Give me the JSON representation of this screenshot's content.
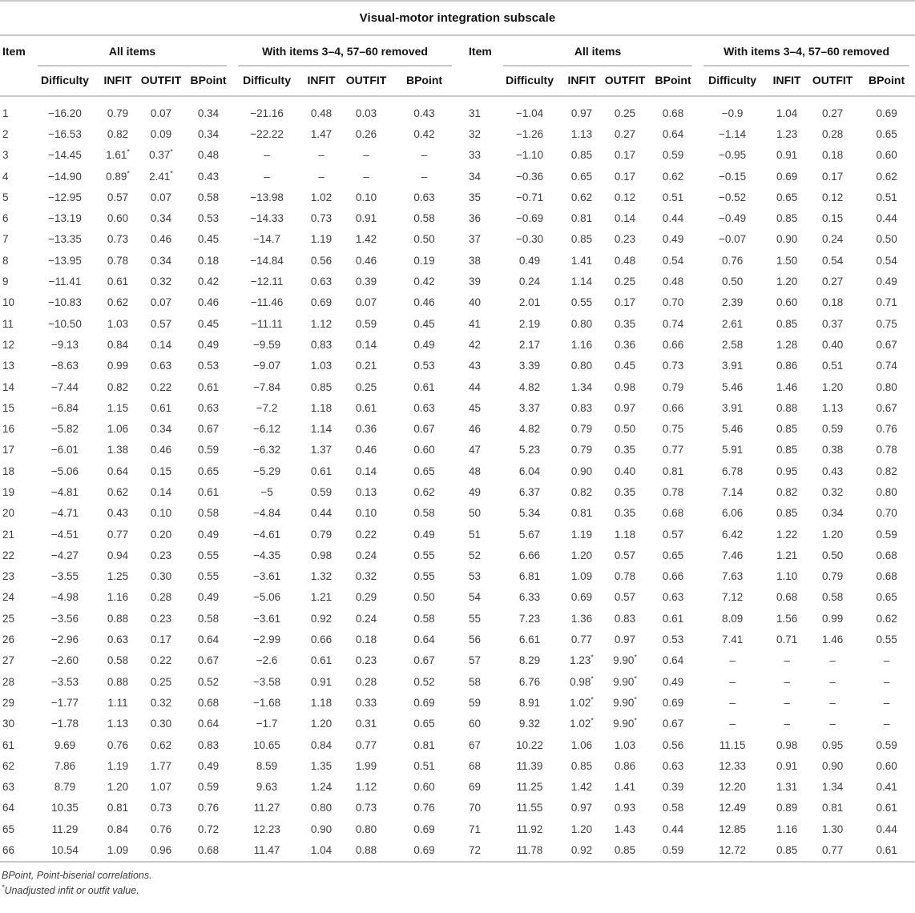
{
  "title": "Visual-motor integration subscale",
  "table": {
    "item_header": "Item",
    "group_headers": [
      "All items",
      "With items 3–4, 57–60 removed"
    ],
    "sub_headers": [
      "Difficulty",
      "INFIT",
      "OUTFIT",
      "BPoint"
    ],
    "left_rows": [
      [
        "1",
        "−16.20",
        "0.79",
        "0.07",
        "0.34",
        "−21.16",
        "0.48",
        "0.03",
        "0.43"
      ],
      [
        "2",
        "−16.53",
        "0.82",
        "0.09",
        "0.34",
        "−22.22",
        "1.47",
        "0.26",
        "0.42"
      ],
      [
        "3",
        "−14.45",
        "1.61*",
        "0.37*",
        "0.48",
        "–",
        "–",
        "–",
        "–"
      ],
      [
        "4",
        "−14.90",
        "0.89*",
        "2.41*",
        "0.43",
        "–",
        "–",
        "–",
        "–"
      ],
      [
        "5",
        "−12.95",
        "0.57",
        "0.07",
        "0.58",
        "−13.98",
        "1.02",
        "0.10",
        "0.63"
      ],
      [
        "6",
        "−13.19",
        "0.60",
        "0.34",
        "0.53",
        "−14.33",
        "0.73",
        "0.91",
        "0.58"
      ],
      [
        "7",
        "−13.35",
        "0.73",
        "0.46",
        "0.45",
        "−14.7",
        "1.19",
        "1.42",
        "0.50"
      ],
      [
        "8",
        "−13.95",
        "0.78",
        "0.34",
        "0.18",
        "−14.84",
        "0.56",
        "0.46",
        "0.19"
      ],
      [
        "9",
        "−11.41",
        "0.61",
        "0.32",
        "0.42",
        "−12.11",
        "0.63",
        "0.39",
        "0.42"
      ],
      [
        "10",
        "−10.83",
        "0.62",
        "0.07",
        "0.46",
        "−11.46",
        "0.69",
        "0.07",
        "0.46"
      ],
      [
        "11",
        "−10.50",
        "1.03",
        "0.57",
        "0.45",
        "−11.11",
        "1.12",
        "0.59",
        "0.45"
      ],
      [
        "12",
        "−9.13",
        "0.84",
        "0.14",
        "0.49",
        "−9.59",
        "0.83",
        "0.14",
        "0.49"
      ],
      [
        "13",
        "−8.63",
        "0.99",
        "0.63",
        "0.53",
        "−9.07",
        "1.03",
        "0.21",
        "0.53"
      ],
      [
        "14",
        "−7.44",
        "0.82",
        "0.22",
        "0.61",
        "−7.84",
        "0.85",
        "0.25",
        "0.61"
      ],
      [
        "15",
        "−6.84",
        "1.15",
        "0.61",
        "0.63",
        "−7.2",
        "1.18",
        "0.61",
        "0.63"
      ],
      [
        "16",
        "−5.82",
        "1.06",
        "0.34",
        "0.67",
        "−6.12",
        "1.14",
        "0.36",
        "0.67"
      ],
      [
        "17",
        "−6.01",
        "1.38",
        "0.46",
        "0.59",
        "−6.32",
        "1.37",
        "0.46",
        "0.60"
      ],
      [
        "18",
        "−5.06",
        "0.64",
        "0.15",
        "0.65",
        "−5.29",
        "0.61",
        "0.14",
        "0.65"
      ],
      [
        "19",
        "−4.81",
        "0.62",
        "0.14",
        "0.61",
        "−5",
        "0.59",
        "0.13",
        "0.62"
      ],
      [
        "20",
        "−4.71",
        "0.43",
        "0.10",
        "0.58",
        "−4.84",
        "0.44",
        "0.10",
        "0.58"
      ],
      [
        "21",
        "−4.51",
        "0.77",
        "0.20",
        "0.49",
        "−4.61",
        "0.79",
        "0.22",
        "0.49"
      ],
      [
        "22",
        "−4.27",
        "0.94",
        "0.23",
        "0.55",
        "−4.35",
        "0.98",
        "0.24",
        "0.55"
      ],
      [
        "23",
        "−3.55",
        "1.25",
        "0.30",
        "0.55",
        "−3.61",
        "1.32",
        "0.32",
        "0.55"
      ],
      [
        "24",
        "−4.98",
        "1.16",
        "0.28",
        "0.49",
        "−5.06",
        "1.21",
        "0.29",
        "0.50"
      ],
      [
        "25",
        "−3.56",
        "0.88",
        "0.23",
        "0.58",
        "−3.61",
        "0.92",
        "0.24",
        "0.58"
      ],
      [
        "26",
        "−2.96",
        "0.63",
        "0.17",
        "0.64",
        "−2.99",
        "0.66",
        "0.18",
        "0.64"
      ],
      [
        "27",
        "−2.60",
        "0.58",
        "0.22",
        "0.67",
        "−2.6",
        "0.61",
        "0.23",
        "0.67"
      ],
      [
        "28",
        "−3.53",
        "0.88",
        "0.25",
        "0.52",
        "−3.58",
        "0.91",
        "0.28",
        "0.52"
      ],
      [
        "29",
        "−1.77",
        "1.11",
        "0.32",
        "0.68",
        "−1.68",
        "1.18",
        "0.33",
        "0.69"
      ],
      [
        "30",
        "−1.78",
        "1.13",
        "0.30",
        "0.64",
        "−1.7",
        "1.20",
        "0.31",
        "0.65"
      ],
      [
        "61",
        "9.69",
        "0.76",
        "0.62",
        "0.83",
        "10.65",
        "0.84",
        "0.77",
        "0.81"
      ],
      [
        "62",
        "7.86",
        "1.19",
        "1.77",
        "0.49",
        "8.59",
        "1.35",
        "1.99",
        "0.51"
      ],
      [
        "63",
        "8.79",
        "1.20",
        "1.07",
        "0.59",
        "9.63",
        "1.24",
        "1.12",
        "0.60"
      ],
      [
        "64",
        "10.35",
        "0.81",
        "0.73",
        "0.76",
        "11.27",
        "0.80",
        "0.73",
        "0.76"
      ],
      [
        "65",
        "11.29",
        "0.84",
        "0.76",
        "0.72",
        "12.23",
        "0.90",
        "0.80",
        "0.69"
      ],
      [
        "66",
        "10.54",
        "1.09",
        "0.96",
        "0.68",
        "11.47",
        "1.04",
        "0.88",
        "0.69"
      ]
    ],
    "right_rows": [
      [
        "31",
        "−1.04",
        "0.97",
        "0.25",
        "0.68",
        "−0.9",
        "1.04",
        "0.27",
        "0.69"
      ],
      [
        "32",
        "−1.26",
        "1.13",
        "0.27",
        "0.64",
        "−1.14",
        "1.23",
        "0.28",
        "0.65"
      ],
      [
        "33",
        "−1.10",
        "0.85",
        "0.17",
        "0.59",
        "−0.95",
        "0.91",
        "0.18",
        "0.60"
      ],
      [
        "34",
        "−0.36",
        "0.65",
        "0.17",
        "0.62",
        "−0.15",
        "0.69",
        "0.17",
        "0.62"
      ],
      [
        "35",
        "−0.71",
        "0.62",
        "0.12",
        "0.51",
        "−0.52",
        "0.65",
        "0.12",
        "0.51"
      ],
      [
        "36",
        "−0.69",
        "0.81",
        "0.14",
        "0.44",
        "−0.49",
        "0.85",
        "0.15",
        "0.44"
      ],
      [
        "37",
        "−0.30",
        "0.85",
        "0.23",
        "0.49",
        "−0.07",
        "0.90",
        "0.24",
        "0.50"
      ],
      [
        "38",
        "0.49",
        "1.41",
        "0.48",
        "0.54",
        "0.76",
        "1.50",
        "0.54",
        "0.54"
      ],
      [
        "39",
        "0.24",
        "1.14",
        "0.25",
        "0.48",
        "0.50",
        "1.20",
        "0.27",
        "0.49"
      ],
      [
        "40",
        "2.01",
        "0.55",
        "0.17",
        "0.70",
        "2.39",
        "0.60",
        "0.18",
        "0.71"
      ],
      [
        "41",
        "2.19",
        "0.80",
        "0.35",
        "0.74",
        "2.61",
        "0.85",
        "0.37",
        "0.75"
      ],
      [
        "42",
        "2.17",
        "1.16",
        "0.36",
        "0.66",
        "2.58",
        "1.28",
        "0.40",
        "0.67"
      ],
      [
        "43",
        "3.39",
        "0.80",
        "0.45",
        "0.73",
        "3.91",
        "0.86",
        "0.51",
        "0.74"
      ],
      [
        "44",
        "4.82",
        "1.34",
        "0.98",
        "0.79",
        "5.46",
        "1.46",
        "1.20",
        "0.80"
      ],
      [
        "45",
        "3.37",
        "0.83",
        "0.97",
        "0.66",
        "3.91",
        "0.88",
        "1.13",
        "0.67"
      ],
      [
        "46",
        "4.82",
        "0.79",
        "0.50",
        "0.75",
        "5.46",
        "0.85",
        "0.59",
        "0.76"
      ],
      [
        "47",
        "5.23",
        "0.79",
        "0.35",
        "0.77",
        "5.91",
        "0.85",
        "0.38",
        "0.78"
      ],
      [
        "48",
        "6.04",
        "0.90",
        "0.40",
        "0.81",
        "6.78",
        "0.95",
        "0.43",
        "0.82"
      ],
      [
        "49",
        "6.37",
        "0.82",
        "0.35",
        "0.78",
        "7.14",
        "0.82",
        "0.32",
        "0.80"
      ],
      [
        "50",
        "5.34",
        "0.81",
        "0.35",
        "0.68",
        "6.06",
        "0.85",
        "0.34",
        "0.70"
      ],
      [
        "51",
        "5.67",
        "1.19",
        "1.18",
        "0.57",
        "6.42",
        "1.22",
        "1.20",
        "0.59"
      ],
      [
        "52",
        "6.66",
        "1.20",
        "0.57",
        "0.65",
        "7.46",
        "1.21",
        "0.50",
        "0.68"
      ],
      [
        "53",
        "6.81",
        "1.09",
        "0.78",
        "0.66",
        "7.63",
        "1.10",
        "0.79",
        "0.68"
      ],
      [
        "54",
        "6.33",
        "0.69",
        "0.57",
        "0.63",
        "7.12",
        "0.68",
        "0.58",
        "0.65"
      ],
      [
        "55",
        "7.23",
        "1.36",
        "0.83",
        "0.61",
        "8.09",
        "1.56",
        "0.99",
        "0.62"
      ],
      [
        "56",
        "6.61",
        "0.77",
        "0.97",
        "0.53",
        "7.41",
        "0.71",
        "1.46",
        "0.55"
      ],
      [
        "57",
        "8.29",
        "1.23*",
        "9.90*",
        "0.64",
        "–",
        "–",
        "–",
        "–"
      ],
      [
        "58",
        "6.76",
        "0.98*",
        "9.90*",
        "0.49",
        "–",
        "–",
        "–",
        "–"
      ],
      [
        "59",
        "8.91",
        "1.02*",
        "9.90*",
        "0.69",
        "–",
        "–",
        "–",
        "–"
      ],
      [
        "60",
        "9.32",
        "1.02*",
        "9.90*",
        "0.67",
        "–",
        "–",
        "–",
        "–"
      ],
      [
        "67",
        "10.22",
        "1.06",
        "1.03",
        "0.56",
        "11.15",
        "0.98",
        "0.95",
        "0.59"
      ],
      [
        "68",
        "11.39",
        "0.85",
        "0.86",
        "0.63",
        "12.33",
        "0.91",
        "0.90",
        "0.60"
      ],
      [
        "69",
        "11.25",
        "1.42",
        "1.41",
        "0.39",
        "12.20",
        "1.31",
        "1.34",
        "0.41"
      ],
      [
        "70",
        "11.55",
        "0.97",
        "0.93",
        "0.58",
        "12.49",
        "0.89",
        "0.81",
        "0.61"
      ],
      [
        "71",
        "11.92",
        "1.20",
        "1.43",
        "0.44",
        "12.85",
        "1.16",
        "1.30",
        "0.44"
      ],
      [
        "72",
        "11.78",
        "0.92",
        "0.85",
        "0.59",
        "12.72",
        "0.85",
        "0.77",
        "0.61"
      ]
    ]
  },
  "footnotes": {
    "bpoint": "BPoint, Point-biserial correlations.",
    "asterisk_marker": "*",
    "asterisk_text": "Unadjusted infit or outfit value."
  },
  "colors": {
    "rule": "#c8c8c8",
    "heading_text": "#131313",
    "body_text": "#3d3d3d",
    "background": "#ffffff"
  }
}
